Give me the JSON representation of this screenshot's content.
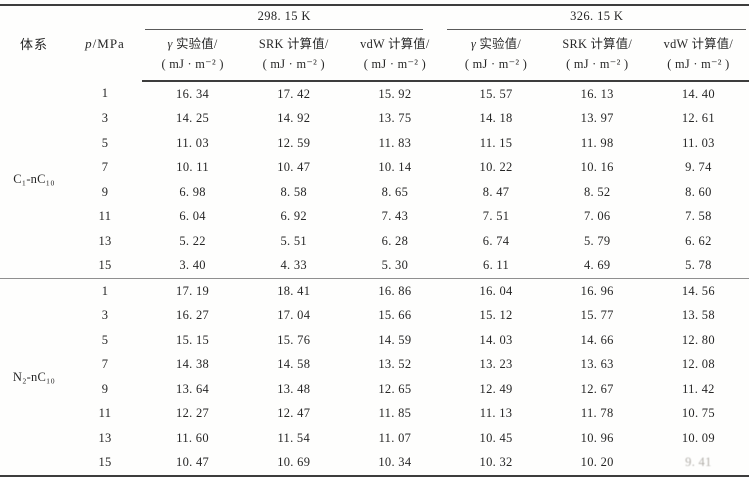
{
  "table": {
    "header": {
      "system_label": "体系",
      "pressure_symbol": "p",
      "pressure_unit": "/MPa",
      "temperature_groups": [
        "298. 15 K",
        "326. 15 K"
      ],
      "columns": [
        {
          "prefix": "γ",
          "label": " 实验值/",
          "unit": "( mJ · m⁻² )"
        },
        {
          "prefix": "",
          "label": "SRK 计算值/",
          "unit": "( mJ · m⁻² )"
        },
        {
          "prefix": "",
          "label": "vdW 计算值/",
          "unit": "( mJ · m⁻² )"
        }
      ]
    },
    "sections": [
      {
        "label": "C₁-nC₁₀",
        "rows": [
          {
            "p": "1",
            "values": [
              "16. 34",
              "17. 42",
              "15. 92",
              "15. 57",
              "16. 13",
              "14. 40"
            ]
          },
          {
            "p": "3",
            "values": [
              "14. 25",
              "14. 92",
              "13. 75",
              "14. 18",
              "13. 97",
              "12. 61"
            ]
          },
          {
            "p": "5",
            "values": [
              "11. 03",
              "12. 59",
              "11. 83",
              "11. 15",
              "11. 98",
              "11. 03"
            ]
          },
          {
            "p": "7",
            "values": [
              "10. 11",
              "10. 47",
              "10. 14",
              "10. 22",
              "10. 16",
              "9. 74"
            ]
          },
          {
            "p": "9",
            "values": [
              "6. 98",
              "8. 58",
              "8. 65",
              "8. 47",
              "8. 52",
              "8. 60"
            ]
          },
          {
            "p": "11",
            "values": [
              "6. 04",
              "6. 92",
              "7. 43",
              "7. 51",
              "7. 06",
              "7. 58"
            ]
          },
          {
            "p": "13",
            "values": [
              "5. 22",
              "5. 51",
              "6. 28",
              "6. 74",
              "5. 79",
              "6. 62"
            ]
          },
          {
            "p": "15",
            "values": [
              "3. 40",
              "4. 33",
              "5. 30",
              "6. 11",
              "4. 69",
              "5. 78"
            ]
          }
        ]
      },
      {
        "label": "N₂-nC₁₀",
        "rows": [
          {
            "p": "1",
            "values": [
              "17. 19",
              "18. 41",
              "16. 86",
              "16. 04",
              "16. 96",
              "14. 56"
            ]
          },
          {
            "p": "3",
            "values": [
              "16. 27",
              "17. 04",
              "15. 66",
              "15. 12",
              "15. 77",
              "13. 58"
            ]
          },
          {
            "p": "5",
            "values": [
              "15. 15",
              "15. 76",
              "14. 59",
              "14. 03",
              "14. 66",
              "12. 80"
            ]
          },
          {
            "p": "7",
            "values": [
              "14. 38",
              "14. 58",
              "13. 52",
              "13. 23",
              "13. 63",
              "12. 08"
            ]
          },
          {
            "p": "9",
            "values": [
              "13. 64",
              "13. 48",
              "12. 65",
              "12. 49",
              "12. 67",
              "11. 42"
            ]
          },
          {
            "p": "11",
            "values": [
              "12. 27",
              "12. 47",
              "11. 85",
              "11. 13",
              "11. 78",
              "10. 75"
            ]
          },
          {
            "p": "13",
            "values": [
              "11. 60",
              "11. 54",
              "11. 07",
              "10. 45",
              "10. 96",
              "10. 09"
            ]
          },
          {
            "p": "15",
            "values": [
              "10. 47",
              "10. 69",
              "10. 34",
              "10. 32",
              "10. 20",
              "9. 41"
            ]
          }
        ]
      }
    ],
    "last_cell_faded": true
  }
}
